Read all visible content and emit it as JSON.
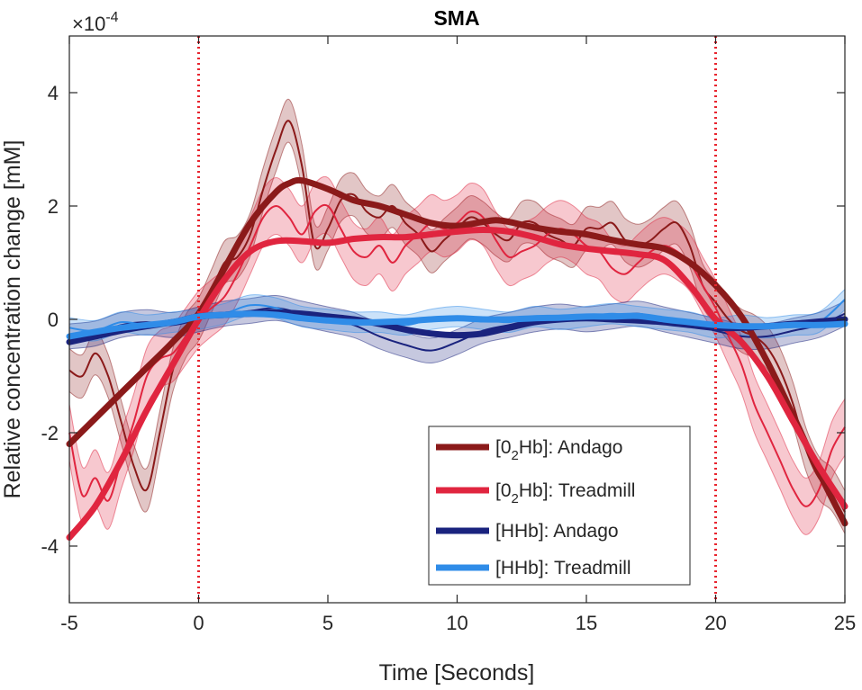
{
  "chart_data": {
    "type": "line",
    "title": "SMA",
    "xlabel": "Time [Seconds]",
    "ylabel": "Relative concentration change [mM]",
    "y_exponent_label": "×10",
    "y_exponent_power": "-4",
    "xlim": [
      -5,
      25
    ],
    "ylim": [
      -5,
      5
    ],
    "xticks": [
      -5,
      0,
      5,
      10,
      15,
      20,
      25
    ],
    "xtick_labels": [
      "-5",
      "0",
      "5",
      "10",
      "15",
      "20",
      "25"
    ],
    "yticks": [
      -4,
      -2,
      0,
      2,
      4
    ],
    "ytick_labels": [
      "-4",
      "-2",
      "0",
      "2",
      "4"
    ],
    "vlines": [
      0,
      20
    ],
    "vline_color": "#e8252f",
    "legend_position": "bottom-right",
    "series": [
      {
        "name": "[O2Hb]: Andago",
        "legend_main": "[0",
        "legend_sub": "2",
        "legend_rest": "Hb]: Andago",
        "color": "#8b1a1a",
        "fit": {
          "x": [
            -5,
            -4,
            -3,
            -2,
            -1,
            0,
            1,
            2,
            3,
            3.5,
            4,
            5,
            6,
            7,
            8,
            9,
            10,
            11,
            11.5,
            12,
            13,
            14,
            15,
            16,
            17,
            18,
            19,
            20,
            21,
            22,
            23,
            24,
            25
          ],
          "y": [
            -2.2,
            -1.75,
            -1.3,
            -0.85,
            -0.4,
            0.1,
            0.9,
            1.7,
            2.25,
            2.4,
            2.45,
            2.3,
            2.1,
            2.0,
            1.85,
            1.7,
            1.65,
            1.72,
            1.75,
            1.72,
            1.62,
            1.55,
            1.5,
            1.4,
            1.32,
            1.25,
            1.0,
            0.6,
            0.05,
            -0.75,
            -1.7,
            -2.7,
            -3.6
          ]
        },
        "raw": {
          "x": [
            -5,
            -4.5,
            -4,
            -3.5,
            -3,
            -2.5,
            -2,
            -1.5,
            -1,
            -0.5,
            0,
            0.5,
            1,
            1.5,
            2,
            2.5,
            3,
            3.5,
            4,
            4.5,
            5,
            5.5,
            6,
            6.5,
            7,
            7.5,
            8,
            8.5,
            9,
            9.5,
            10,
            10.5,
            11,
            11.5,
            12,
            12.5,
            13,
            13.5,
            14,
            14.5,
            15,
            15.5,
            16,
            16.5,
            17,
            17.5,
            18,
            18.5,
            19,
            19.5,
            20,
            20.5,
            21,
            21.5,
            22,
            22.5,
            23,
            23.5,
            24,
            24.5,
            25
          ],
          "y": [
            -0.9,
            -1.0,
            -0.6,
            -1.0,
            -1.8,
            -2.6,
            -3.0,
            -2.0,
            -0.9,
            -0.3,
            0.0,
            0.5,
            1.0,
            1.1,
            1.5,
            2.3,
            3.0,
            3.5,
            2.7,
            1.3,
            1.6,
            2.1,
            2.2,
            1.9,
            1.8,
            2.0,
            1.7,
            1.5,
            1.2,
            1.4,
            1.6,
            1.8,
            1.7,
            1.5,
            1.4,
            1.7,
            1.7,
            1.5,
            1.4,
            1.3,
            1.6,
            1.6,
            1.7,
            1.4,
            1.3,
            1.4,
            1.6,
            1.7,
            1.3,
            0.6,
            0.3,
            0.0,
            -0.2,
            -0.3,
            -0.5,
            -0.9,
            -1.5,
            -2.3,
            -2.8,
            -3.0,
            -3.4
          ]
        },
        "band_halfwidth": 0.38
      },
      {
        "name": "[O2Hb]: Treadmill",
        "legend_main": "[0",
        "legend_sub": "2",
        "legend_rest": "Hb]: Treadmill",
        "color": "#e0253f",
        "fit": {
          "x": [
            -5,
            -4,
            -3,
            -2,
            -1,
            0,
            1,
            2,
            3,
            4,
            5,
            6,
            7,
            8,
            9,
            10,
            11,
            12,
            13,
            14,
            15,
            16,
            17,
            18,
            19,
            20,
            21,
            22,
            23,
            24,
            25
          ],
          "y": [
            -3.85,
            -3.3,
            -2.5,
            -1.6,
            -0.8,
            0.0,
            0.7,
            1.2,
            1.38,
            1.38,
            1.35,
            1.42,
            1.45,
            1.45,
            1.5,
            1.55,
            1.58,
            1.55,
            1.45,
            1.32,
            1.25,
            1.2,
            1.15,
            1.05,
            0.6,
            0.0,
            -0.4,
            -1.0,
            -1.8,
            -2.6,
            -3.3
          ]
        },
        "raw": {
          "x": [
            -5,
            -4.5,
            -4,
            -3.5,
            -3,
            -2.5,
            -2,
            -1.5,
            -1,
            -0.5,
            0,
            0.5,
            1,
            1.5,
            2,
            2.5,
            3,
            3.5,
            4,
            4.5,
            5,
            5.5,
            6,
            6.5,
            7,
            7.5,
            8,
            8.5,
            9,
            9.5,
            10,
            10.5,
            11,
            11.5,
            12,
            12.5,
            13,
            13.5,
            14,
            14.5,
            15,
            15.5,
            16,
            16.5,
            17,
            17.5,
            18,
            18.5,
            19,
            19.5,
            20,
            20.5,
            21,
            21.5,
            22,
            22.5,
            23,
            23.5,
            24,
            24.5,
            25
          ],
          "y": [
            -2.0,
            -3.1,
            -2.8,
            -3.2,
            -2.5,
            -1.8,
            -1.0,
            -0.7,
            -0.6,
            -0.3,
            0.0,
            0.2,
            0.4,
            0.8,
            1.3,
            1.8,
            2.0,
            1.8,
            1.5,
            1.9,
            2.0,
            1.6,
            1.2,
            1.1,
            1.3,
            1.0,
            1.3,
            1.5,
            1.7,
            1.6,
            1.7,
            1.9,
            1.8,
            1.4,
            1.1,
            1.2,
            1.3,
            1.5,
            1.6,
            1.5,
            1.3,
            1.2,
            0.9,
            0.8,
            1.0,
            1.2,
            1.3,
            1.2,
            1.0,
            0.6,
            0.2,
            -0.3,
            -0.8,
            -1.5,
            -2.0,
            -2.5,
            -3.0,
            -3.3,
            -3.0,
            -2.3,
            -1.9
          ]
        },
        "band_halfwidth": 0.5
      },
      {
        "name": "[HHb]: Andago",
        "legend_main": "[HHb]: Andago",
        "legend_sub": "",
        "legend_rest": "",
        "color": "#1a237e",
        "fit": {
          "x": [
            -5,
            -4,
            -3,
            -2,
            -1,
            0,
            1,
            2,
            3,
            4,
            5,
            6,
            7,
            8,
            9,
            10,
            11,
            12,
            13,
            14,
            15,
            16,
            17,
            18,
            19,
            20,
            21,
            22,
            23,
            24,
            25
          ],
          "y": [
            -0.4,
            -0.3,
            -0.2,
            -0.12,
            -0.05,
            0.05,
            0.08,
            0.1,
            0.12,
            0.1,
            0.05,
            0.0,
            -0.08,
            -0.18,
            -0.25,
            -0.28,
            -0.25,
            -0.15,
            -0.05,
            0.0,
            0.02,
            0.0,
            -0.02,
            -0.05,
            -0.1,
            -0.15,
            -0.15,
            -0.12,
            -0.08,
            -0.04,
            0.0
          ]
        },
        "raw": {
          "x": [
            -5,
            -4,
            -3,
            -2,
            -1,
            0,
            1,
            2,
            3,
            4,
            5,
            6,
            7,
            8,
            9,
            10,
            11,
            12,
            13,
            14,
            15,
            16,
            17,
            18,
            19,
            20,
            21,
            22,
            23,
            24,
            25
          ],
          "y": [
            -0.3,
            -0.25,
            -0.1,
            -0.05,
            -0.1,
            0.0,
            0.1,
            0.15,
            0.2,
            0.1,
            0.0,
            -0.1,
            -0.3,
            -0.45,
            -0.55,
            -0.4,
            -0.2,
            -0.1,
            0.0,
            0.05,
            0.0,
            0.05,
            0.1,
            0.0,
            -0.1,
            -0.2,
            -0.3,
            -0.3,
            -0.2,
            -0.1,
            0.1
          ]
        },
        "band_halfwidth": 0.22
      },
      {
        "name": "[HHb]: Treadmill",
        "legend_main": "[HHb]: Treadmill",
        "legend_sub": "",
        "legend_rest": "",
        "color": "#2f8ce8",
        "fit": {
          "x": [
            -5,
            -4,
            -3,
            -2,
            -1,
            0,
            1,
            2,
            3,
            4,
            5,
            6,
            7,
            8,
            9,
            10,
            11,
            12,
            13,
            14,
            15,
            16,
            17,
            18,
            19,
            20,
            21,
            22,
            23,
            24,
            25
          ],
          "y": [
            -0.3,
            -0.22,
            -0.15,
            -0.1,
            -0.05,
            0.05,
            0.08,
            0.1,
            0.08,
            0.02,
            -0.02,
            -0.05,
            -0.05,
            -0.03,
            0.0,
            0.02,
            0.0,
            0.0,
            0.02,
            0.03,
            0.05,
            0.05,
            0.06,
            0.0,
            -0.05,
            -0.1,
            -0.12,
            -0.12,
            -0.1,
            -0.1,
            -0.08
          ]
        },
        "raw": {
          "x": [
            -5,
            -4,
            -3,
            -2,
            -1,
            0,
            1,
            2,
            3,
            4,
            5,
            6,
            7,
            8,
            9,
            10,
            11,
            12,
            13,
            14,
            15,
            16,
            17,
            18,
            19,
            20,
            21,
            22,
            23,
            24,
            25
          ],
          "y": [
            -0.15,
            -0.2,
            -0.05,
            -0.1,
            -0.05,
            0.0,
            0.1,
            0.25,
            0.2,
            0.05,
            0.0,
            -0.05,
            -0.05,
            -0.1,
            0.0,
            0.05,
            0.0,
            -0.05,
            0.05,
            0.0,
            0.05,
            0.1,
            0.05,
            0.0,
            -0.05,
            -0.15,
            -0.1,
            -0.15,
            -0.1,
            -0.05,
            0.35
          ]
        },
        "band_halfwidth": 0.18
      }
    ]
  }
}
